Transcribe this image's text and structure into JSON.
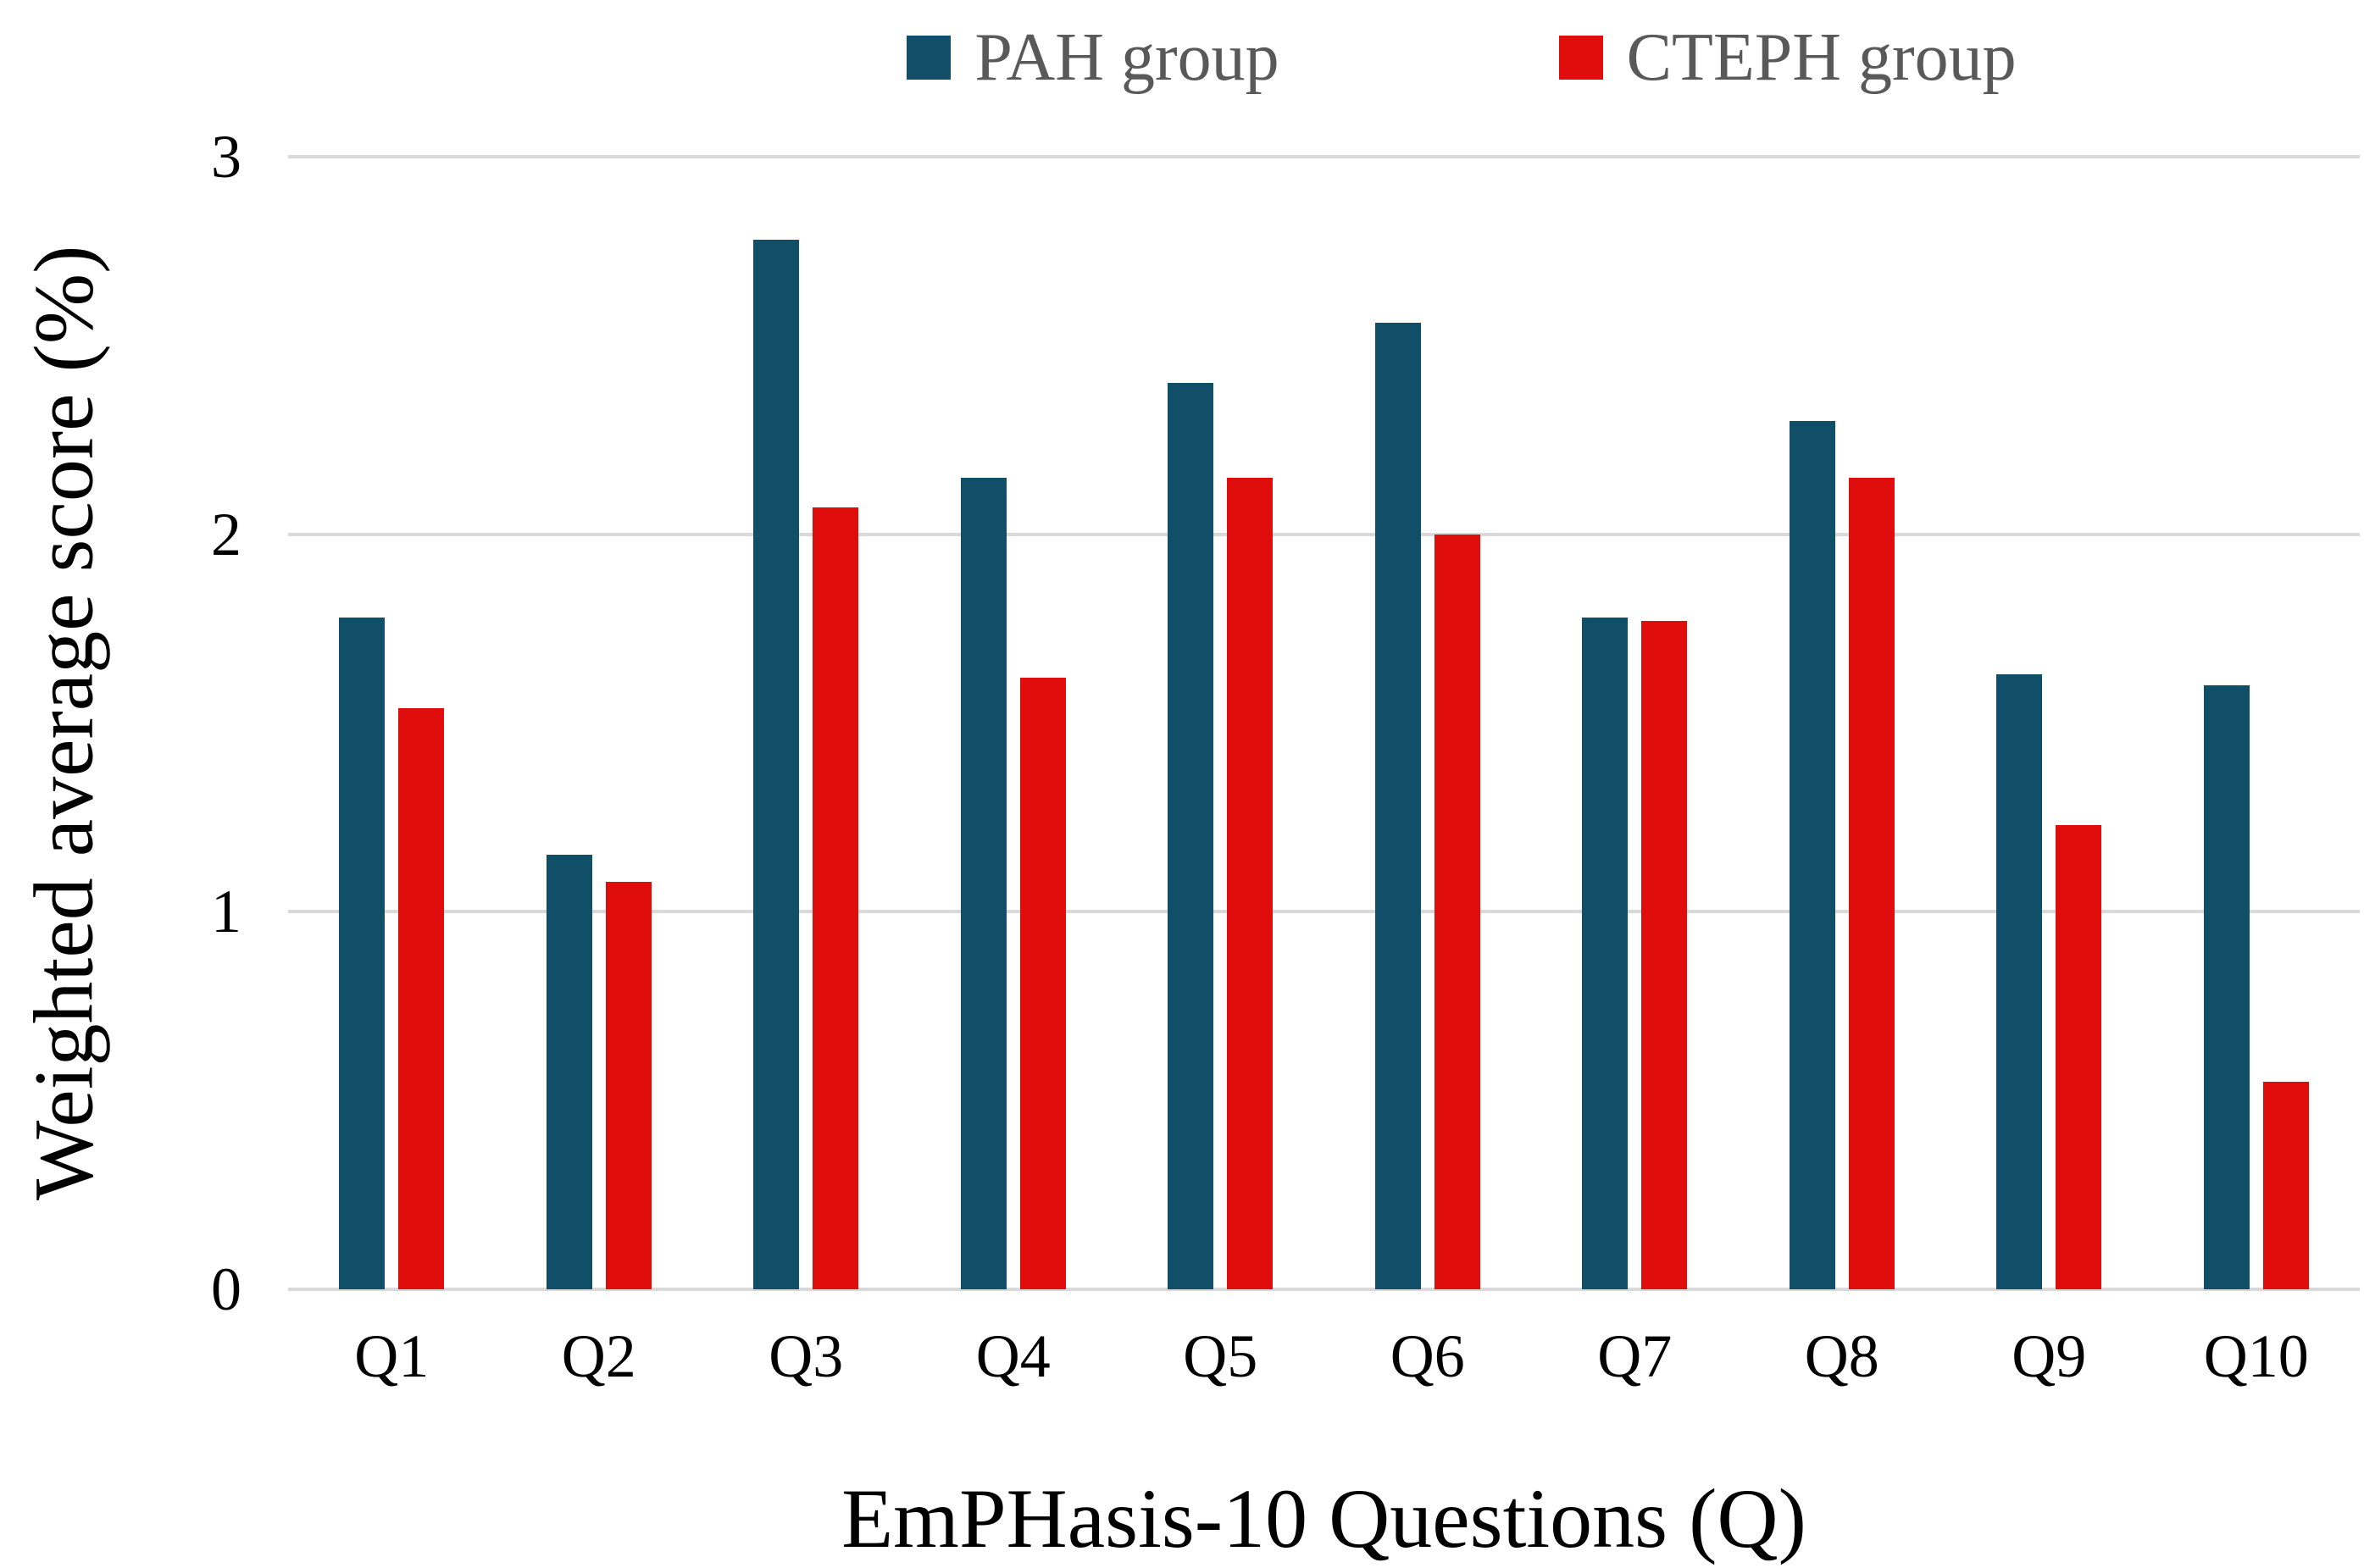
{
  "chart_data": {
    "type": "bar",
    "title": "",
    "categories": [
      "Q1",
      "Q2",
      "Q3",
      "Q4",
      "Q5",
      "Q6",
      "Q7",
      "Q8",
      "Q9",
      "Q10"
    ],
    "series": [
      {
        "name": "PAH group",
        "color": "#114f68",
        "values": [
          1.78,
          1.15,
          2.78,
          2.15,
          2.4,
          2.56,
          1.78,
          2.3,
          1.63,
          1.6
        ]
      },
      {
        "name": "CTEPH group",
        "color": "#e00d0d",
        "values": [
          1.54,
          1.08,
          2.07,
          1.62,
          2.15,
          2.0,
          1.77,
          2.15,
          1.23,
          0.55
        ]
      }
    ],
    "xlabel": "EmPHasis-10 Questions (Q)",
    "ylabel": "Weighted average score (%)",
    "ylim": [
      0,
      3
    ],
    "yticks": [
      0,
      1,
      2,
      3
    ],
    "grid": "horizontal",
    "legend_position": "top-center",
    "gridline_color": "#d9d9d9",
    "legend_text_color": "#595959",
    "axis_text_color": "#000000"
  }
}
